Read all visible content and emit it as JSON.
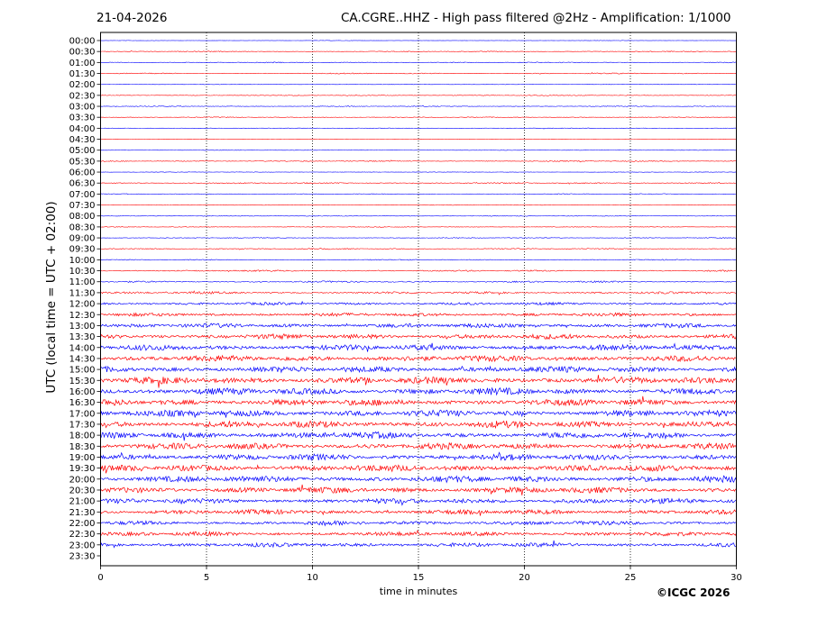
{
  "header": {
    "date": "21-04-2026",
    "title": "CA.CGRE..HHZ - High pass filtered @2Hz - Amplification: 1/1000"
  },
  "footer": {
    "copyright": "©ICGC 2026"
  },
  "chart_data": {
    "type": "line",
    "title": "CA.CGRE..HHZ - High pass filtered @2Hz - Amplification: 1/1000",
    "xlabel": "time in minutes",
    "ylabel": "UTC (local time = UTC + 02:00)",
    "xlim": [
      0,
      30
    ],
    "x_ticks": [
      "0",
      "5",
      "10",
      "15",
      "20",
      "25",
      "30"
    ],
    "vertical_dotted_gridlines_at": [
      5,
      10,
      15,
      20,
      25
    ],
    "row_colors": [
      "#0000ff",
      "#ff0000"
    ],
    "rows": [
      {
        "label": "00:00",
        "amplitude": 0.2
      },
      {
        "label": "00:30",
        "amplitude": 0.5
      },
      {
        "label": "01:00",
        "amplitude": 0.6
      },
      {
        "label": "01:30",
        "amplitude": 0.6
      },
      {
        "label": "02:00",
        "amplitude": 0.3
      },
      {
        "label": "02:30",
        "amplitude": 0.5
      },
      {
        "label": "03:00",
        "amplitude": 0.5
      },
      {
        "label": "03:30",
        "amplitude": 0.5
      },
      {
        "label": "04:00",
        "amplitude": 0.4
      },
      {
        "label": "04:30",
        "amplitude": 0.2
      },
      {
        "label": "05:00",
        "amplitude": 0.3
      },
      {
        "label": "05:30",
        "amplitude": 0.6
      },
      {
        "label": "06:00",
        "amplitude": 0.3
      },
      {
        "label": "06:30",
        "amplitude": 0.7
      },
      {
        "label": "07:00",
        "amplitude": 0.5
      },
      {
        "label": "07:30",
        "amplitude": 0.4
      },
      {
        "label": "08:00",
        "amplitude": 0.4
      },
      {
        "label": "08:30",
        "amplitude": 0.4
      },
      {
        "label": "09:00",
        "amplitude": 0.5
      },
      {
        "label": "09:30",
        "amplitude": 0.7
      },
      {
        "label": "10:00",
        "amplitude": 0.6
      },
      {
        "label": "10:30",
        "amplitude": 0.9
      },
      {
        "label": "11:00",
        "amplitude": 1.0
      },
      {
        "label": "11:30",
        "amplitude": 1.4
      },
      {
        "label": "12:00",
        "amplitude": 1.6
      },
      {
        "label": "12:30",
        "amplitude": 2.0
      },
      {
        "label": "13:00",
        "amplitude": 2.6
      },
      {
        "label": "13:30",
        "amplitude": 3.0
      },
      {
        "label": "14:00",
        "amplitude": 3.3
      },
      {
        "label": "14:30",
        "amplitude": 3.6
      },
      {
        "label": "15:00",
        "amplitude": 3.6
      },
      {
        "label": "15:30",
        "amplitude": 4.0
      },
      {
        "label": "16:00",
        "amplitude": 4.0
      },
      {
        "label": "16:30",
        "amplitude": 3.9
      },
      {
        "label": "17:00",
        "amplitude": 3.8
      },
      {
        "label": "17:30",
        "amplitude": 4.0
      },
      {
        "label": "18:00",
        "amplitude": 3.8
      },
      {
        "label": "18:30",
        "amplitude": 3.7
      },
      {
        "label": "19:00",
        "amplitude": 3.6
      },
      {
        "label": "19:30",
        "amplitude": 3.9
      },
      {
        "label": "20:00",
        "amplitude": 3.8
      },
      {
        "label": "20:30",
        "amplitude": 3.6
      },
      {
        "label": "21:00",
        "amplitude": 3.0
      },
      {
        "label": "21:30",
        "amplitude": 2.8
      },
      {
        "label": "22:00",
        "amplitude": 2.5
      },
      {
        "label": "22:30",
        "amplitude": 2.5
      },
      {
        "label": "23:00",
        "amplitude": 2.5
      },
      {
        "label": "23:30",
        "amplitude": 0.0
      }
    ]
  }
}
